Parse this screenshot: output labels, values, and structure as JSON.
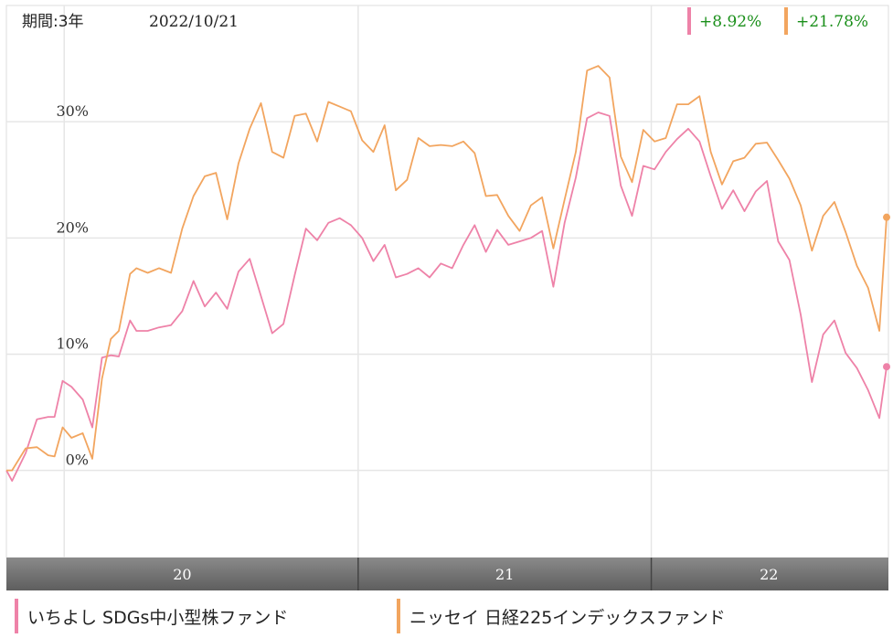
{
  "header": {
    "period_label": "期間:3年",
    "date_label": "2022/10/21"
  },
  "returns": [
    {
      "text": "+8.92%",
      "color": "#ee82a8"
    },
    {
      "text": "+21.78%",
      "color": "#f2a55f"
    }
  ],
  "colors": {
    "positive_text": "#1a8f1a",
    "grid": "#e6e6e6",
    "timebar_top": "#8a8a8a",
    "timebar_bottom": "#5e5e5e"
  },
  "chart_data": {
    "type": "line",
    "title": "",
    "ylabel": "",
    "y_ticks": [
      "0%",
      "10%",
      "20%",
      "30%"
    ],
    "y_tick_values": [
      0,
      10,
      20,
      30
    ],
    "ylim": [
      -7.5,
      40
    ],
    "x_start": "2019-10-21",
    "x_end": "2022-10-21",
    "year_labels": [
      "20",
      "21",
      "22"
    ],
    "year_boundaries": [
      "2020-01-01",
      "2021-01-01",
      "2022-01-01"
    ],
    "grid": true,
    "legend_position": "bottom",
    "series": [
      {
        "name": "いちよし SDGs中小型株ファンド",
        "color": "#ee82a8",
        "end_value": 8.92,
        "points": [
          [
            "2019-10-21",
            0
          ],
          [
            "2019-10-28",
            -0.9
          ],
          [
            "2019-11-14",
            1.5
          ],
          [
            "2019-11-28",
            4.4
          ],
          [
            "2019-12-12",
            4.6
          ],
          [
            "2019-12-20",
            4.6
          ],
          [
            "2019-12-30",
            7.7
          ],
          [
            "2020-01-10",
            7.2
          ],
          [
            "2020-01-24",
            6.1
          ],
          [
            "2020-02-05",
            3.7
          ],
          [
            "2020-02-17",
            9.7
          ],
          [
            "2020-02-28",
            9.9
          ],
          [
            "2020-03-09",
            9.8
          ],
          [
            "2020-03-23",
            12.9
          ],
          [
            "2020-03-31",
            12.0
          ],
          [
            "2020-04-14",
            12.0
          ],
          [
            "2020-04-28",
            12.3
          ],
          [
            "2020-05-13",
            12.5
          ],
          [
            "2020-05-27",
            13.7
          ],
          [
            "2020-06-10",
            16.3
          ],
          [
            "2020-06-24",
            14.1
          ],
          [
            "2020-07-08",
            15.3
          ],
          [
            "2020-07-22",
            13.9
          ],
          [
            "2020-08-05",
            17.1
          ],
          [
            "2020-08-19",
            18.2
          ],
          [
            "2020-09-02",
            15.0
          ],
          [
            "2020-09-16",
            11.8
          ],
          [
            "2020-09-30",
            12.6
          ],
          [
            "2020-10-14",
            16.8
          ],
          [
            "2020-10-28",
            20.8
          ],
          [
            "2020-11-11",
            19.8
          ],
          [
            "2020-11-25",
            21.3
          ],
          [
            "2020-12-09",
            21.7
          ],
          [
            "2020-12-23",
            21.1
          ],
          [
            "2021-01-06",
            20.0
          ],
          [
            "2021-01-20",
            18.0
          ],
          [
            "2021-02-03",
            19.4
          ],
          [
            "2021-02-17",
            16.6
          ],
          [
            "2021-03-03",
            16.9
          ],
          [
            "2021-03-17",
            17.4
          ],
          [
            "2021-03-31",
            16.6
          ],
          [
            "2021-04-14",
            17.8
          ],
          [
            "2021-04-28",
            17.4
          ],
          [
            "2021-05-12",
            19.4
          ],
          [
            "2021-05-26",
            21.1
          ],
          [
            "2021-06-09",
            18.8
          ],
          [
            "2021-06-23",
            20.7
          ],
          [
            "2021-07-07",
            19.4
          ],
          [
            "2021-07-21",
            19.7
          ],
          [
            "2021-08-04",
            20.0
          ],
          [
            "2021-08-18",
            20.6
          ],
          [
            "2021-09-01",
            15.8
          ],
          [
            "2021-09-15",
            21.3
          ],
          [
            "2021-09-29",
            25.2
          ],
          [
            "2021-10-13",
            30.3
          ],
          [
            "2021-10-27",
            30.8
          ],
          [
            "2021-11-10",
            30.5
          ],
          [
            "2021-11-24",
            24.5
          ],
          [
            "2021-12-08",
            21.9
          ],
          [
            "2021-12-22",
            26.2
          ],
          [
            "2022-01-05",
            25.9
          ],
          [
            "2022-01-19",
            27.4
          ],
          [
            "2022-02-02",
            28.5
          ],
          [
            "2022-02-16",
            29.4
          ],
          [
            "2022-03-02",
            28.3
          ],
          [
            "2022-03-16",
            25.3
          ],
          [
            "2022-03-30",
            22.5
          ],
          [
            "2022-04-13",
            24.1
          ],
          [
            "2022-04-27",
            22.3
          ],
          [
            "2022-05-11",
            24.0
          ],
          [
            "2022-05-25",
            24.9
          ],
          [
            "2022-06-08",
            19.7
          ],
          [
            "2022-06-22",
            18.1
          ],
          [
            "2022-07-06",
            13.4
          ],
          [
            "2022-07-20",
            7.6
          ],
          [
            "2022-08-03",
            11.7
          ],
          [
            "2022-08-17",
            12.9
          ],
          [
            "2022-08-31",
            10.1
          ],
          [
            "2022-09-14",
            8.8
          ],
          [
            "2022-09-28",
            6.9
          ],
          [
            "2022-10-12",
            4.5
          ],
          [
            "2022-10-21",
            8.92
          ]
        ]
      },
      {
        "name": "ニッセイ 日経225インデックスファンド",
        "color": "#f2a55f",
        "end_value": 21.78,
        "points": [
          [
            "2019-10-21",
            0
          ],
          [
            "2019-10-28",
            0.0
          ],
          [
            "2019-11-14",
            1.9
          ],
          [
            "2019-11-28",
            2.0
          ],
          [
            "2019-12-12",
            1.3
          ],
          [
            "2019-12-20",
            1.2
          ],
          [
            "2019-12-30",
            3.7
          ],
          [
            "2020-01-10",
            2.8
          ],
          [
            "2020-01-24",
            3.2
          ],
          [
            "2020-02-05",
            1.0
          ],
          [
            "2020-02-17",
            7.9
          ],
          [
            "2020-02-28",
            11.3
          ],
          [
            "2020-03-09",
            12.0
          ],
          [
            "2020-03-23",
            16.9
          ],
          [
            "2020-03-31",
            17.4
          ],
          [
            "2020-04-14",
            17.0
          ],
          [
            "2020-04-28",
            17.4
          ],
          [
            "2020-05-13",
            17.0
          ],
          [
            "2020-05-27",
            20.8
          ],
          [
            "2020-06-10",
            23.6
          ],
          [
            "2020-06-24",
            25.3
          ],
          [
            "2020-07-08",
            25.6
          ],
          [
            "2020-07-22",
            21.6
          ],
          [
            "2020-08-05",
            26.4
          ],
          [
            "2020-08-19",
            29.4
          ],
          [
            "2020-09-02",
            31.6
          ],
          [
            "2020-09-16",
            27.4
          ],
          [
            "2020-09-30",
            26.9
          ],
          [
            "2020-10-14",
            30.5
          ],
          [
            "2020-10-28",
            30.7
          ],
          [
            "2020-11-11",
            28.3
          ],
          [
            "2020-11-25",
            31.7
          ],
          [
            "2020-12-09",
            31.3
          ],
          [
            "2020-12-23",
            30.9
          ],
          [
            "2021-01-06",
            28.4
          ],
          [
            "2021-01-20",
            27.4
          ],
          [
            "2021-02-03",
            29.7
          ],
          [
            "2021-02-17",
            24.1
          ],
          [
            "2021-03-03",
            25.0
          ],
          [
            "2021-03-17",
            28.6
          ],
          [
            "2021-03-31",
            27.9
          ],
          [
            "2021-04-14",
            28.0
          ],
          [
            "2021-04-28",
            27.9
          ],
          [
            "2021-05-12",
            28.3
          ],
          [
            "2021-05-26",
            27.3
          ],
          [
            "2021-06-09",
            23.6
          ],
          [
            "2021-06-23",
            23.7
          ],
          [
            "2021-07-07",
            21.9
          ],
          [
            "2021-07-21",
            20.6
          ],
          [
            "2021-08-04",
            22.8
          ],
          [
            "2021-08-18",
            23.5
          ],
          [
            "2021-09-01",
            19.1
          ],
          [
            "2021-09-15",
            23.3
          ],
          [
            "2021-09-29",
            27.4
          ],
          [
            "2021-10-13",
            34.4
          ],
          [
            "2021-10-27",
            34.8
          ],
          [
            "2021-11-10",
            33.8
          ],
          [
            "2021-11-24",
            27.0
          ],
          [
            "2021-12-08",
            24.8
          ],
          [
            "2021-12-22",
            29.3
          ],
          [
            "2022-01-05",
            28.3
          ],
          [
            "2022-01-19",
            28.6
          ],
          [
            "2022-02-02",
            31.5
          ],
          [
            "2022-02-16",
            31.5
          ],
          [
            "2022-03-02",
            32.2
          ],
          [
            "2022-03-16",
            27.4
          ],
          [
            "2022-03-30",
            24.6
          ],
          [
            "2022-04-13",
            26.6
          ],
          [
            "2022-04-27",
            26.9
          ],
          [
            "2022-05-11",
            28.1
          ],
          [
            "2022-05-25",
            28.2
          ],
          [
            "2022-06-08",
            26.7
          ],
          [
            "2022-06-22",
            25.1
          ],
          [
            "2022-07-06",
            22.8
          ],
          [
            "2022-07-20",
            18.9
          ],
          [
            "2022-08-03",
            21.9
          ],
          [
            "2022-08-17",
            23.1
          ],
          [
            "2022-08-31",
            20.5
          ],
          [
            "2022-09-14",
            17.6
          ],
          [
            "2022-09-28",
            15.7
          ],
          [
            "2022-10-12",
            12.0
          ],
          [
            "2022-10-21",
            21.78
          ]
        ]
      }
    ]
  },
  "legend": [
    {
      "label": "いちよし SDGs中小型株ファンド",
      "color": "#ee82a8"
    },
    {
      "label": "ニッセイ 日経225インデックスファンド",
      "color": "#f2a55f"
    }
  ]
}
